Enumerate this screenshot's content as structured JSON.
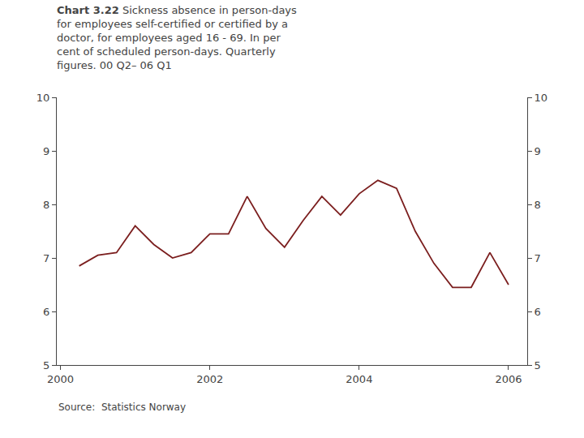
{
  "chart_data": {
    "type": "line",
    "title": "Chart 3.22",
    "subtitle": "Sickness absence in person-days\nfor employees self-certified or certified by a\ndoctor, for employees aged 16 - 69. In per\ncent of scheduled person-days. Quarterly\nfigures. 00 Q2– 06 Q1",
    "annotations": [
      {
        "text": "Source:  Statistics Norway"
      }
    ],
    "x": [
      2000.25,
      2000.5,
      2000.75,
      2001,
      2001.25,
      2001.5,
      2001.75,
      2002,
      2002.25,
      2002.5,
      2002.75,
      2003,
      2003.25,
      2003.5,
      2003.75,
      2004,
      2004.25,
      2004.5,
      2004.75,
      2005,
      2005.25,
      2005.5,
      2005.75,
      2006
    ],
    "values": [
      6.85,
      7.05,
      7.1,
      7.6,
      7.25,
      7.0,
      7.1,
      7.45,
      7.45,
      8.15,
      7.55,
      7.2,
      7.7,
      8.15,
      7.8,
      8.2,
      8.45,
      8.3,
      7.5,
      6.9,
      6.45,
      6.45,
      7.1,
      6.5
    ],
    "color": "#7B1E1E",
    "xlim": [
      1999.95,
      2006.25
    ],
    "xticks": [
      2000,
      2002,
      2004,
      2006
    ],
    "ylim": [
      5,
      10
    ],
    "yticks": [
      5,
      6,
      7,
      8,
      9,
      10
    ],
    "y2lim": [
      5,
      10
    ],
    "y2ticks": [
      5,
      6,
      7,
      8,
      9,
      10
    ],
    "grid": false
  }
}
